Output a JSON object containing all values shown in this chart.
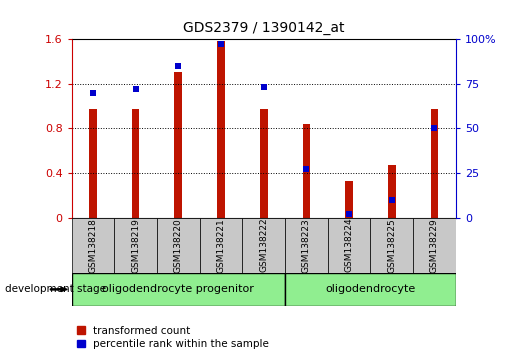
{
  "title": "GDS2379 / 1390142_at",
  "samples": [
    "GSM138218",
    "GSM138219",
    "GSM138220",
    "GSM138221",
    "GSM138222",
    "GSM138223",
    "GSM138224",
    "GSM138225",
    "GSM138229"
  ],
  "transformed_count": [
    0.97,
    0.97,
    1.3,
    1.58,
    0.97,
    0.84,
    0.33,
    0.47,
    0.97
  ],
  "percentile_rank": [
    0.7,
    0.72,
    0.85,
    0.97,
    0.73,
    0.27,
    0.02,
    0.1,
    0.5
  ],
  "bar_color": "#be1400",
  "dot_color": "#0000cc",
  "ylim_left": [
    0,
    1.6
  ],
  "ylim_right": [
    0,
    100
  ],
  "yticks_left": [
    0,
    0.4,
    0.8,
    1.2,
    1.6
  ],
  "yticks_right": [
    0,
    25,
    50,
    75,
    100
  ],
  "ytick_labels_left": [
    "0",
    "0.4",
    "0.8",
    "1.2",
    "1.6"
  ],
  "ytick_labels_right": [
    "0",
    "25",
    "50",
    "75",
    "100%"
  ],
  "groups": [
    {
      "label": "oligodendrocyte progenitor",
      "start": 0,
      "end": 5,
      "color": "#90ee90"
    },
    {
      "label": "oligodendrocyte",
      "start": 5,
      "end": 9,
      "color": "#90ee90"
    }
  ],
  "stage_label": "development stage",
  "legend_items": [
    "transformed count",
    "percentile rank within the sample"
  ],
  "left_axis_color": "#cc0000",
  "right_axis_color": "#0000cc",
  "bar_width": 0.18,
  "label_box_color": "#c8c8c8",
  "background_color": "#ffffff"
}
